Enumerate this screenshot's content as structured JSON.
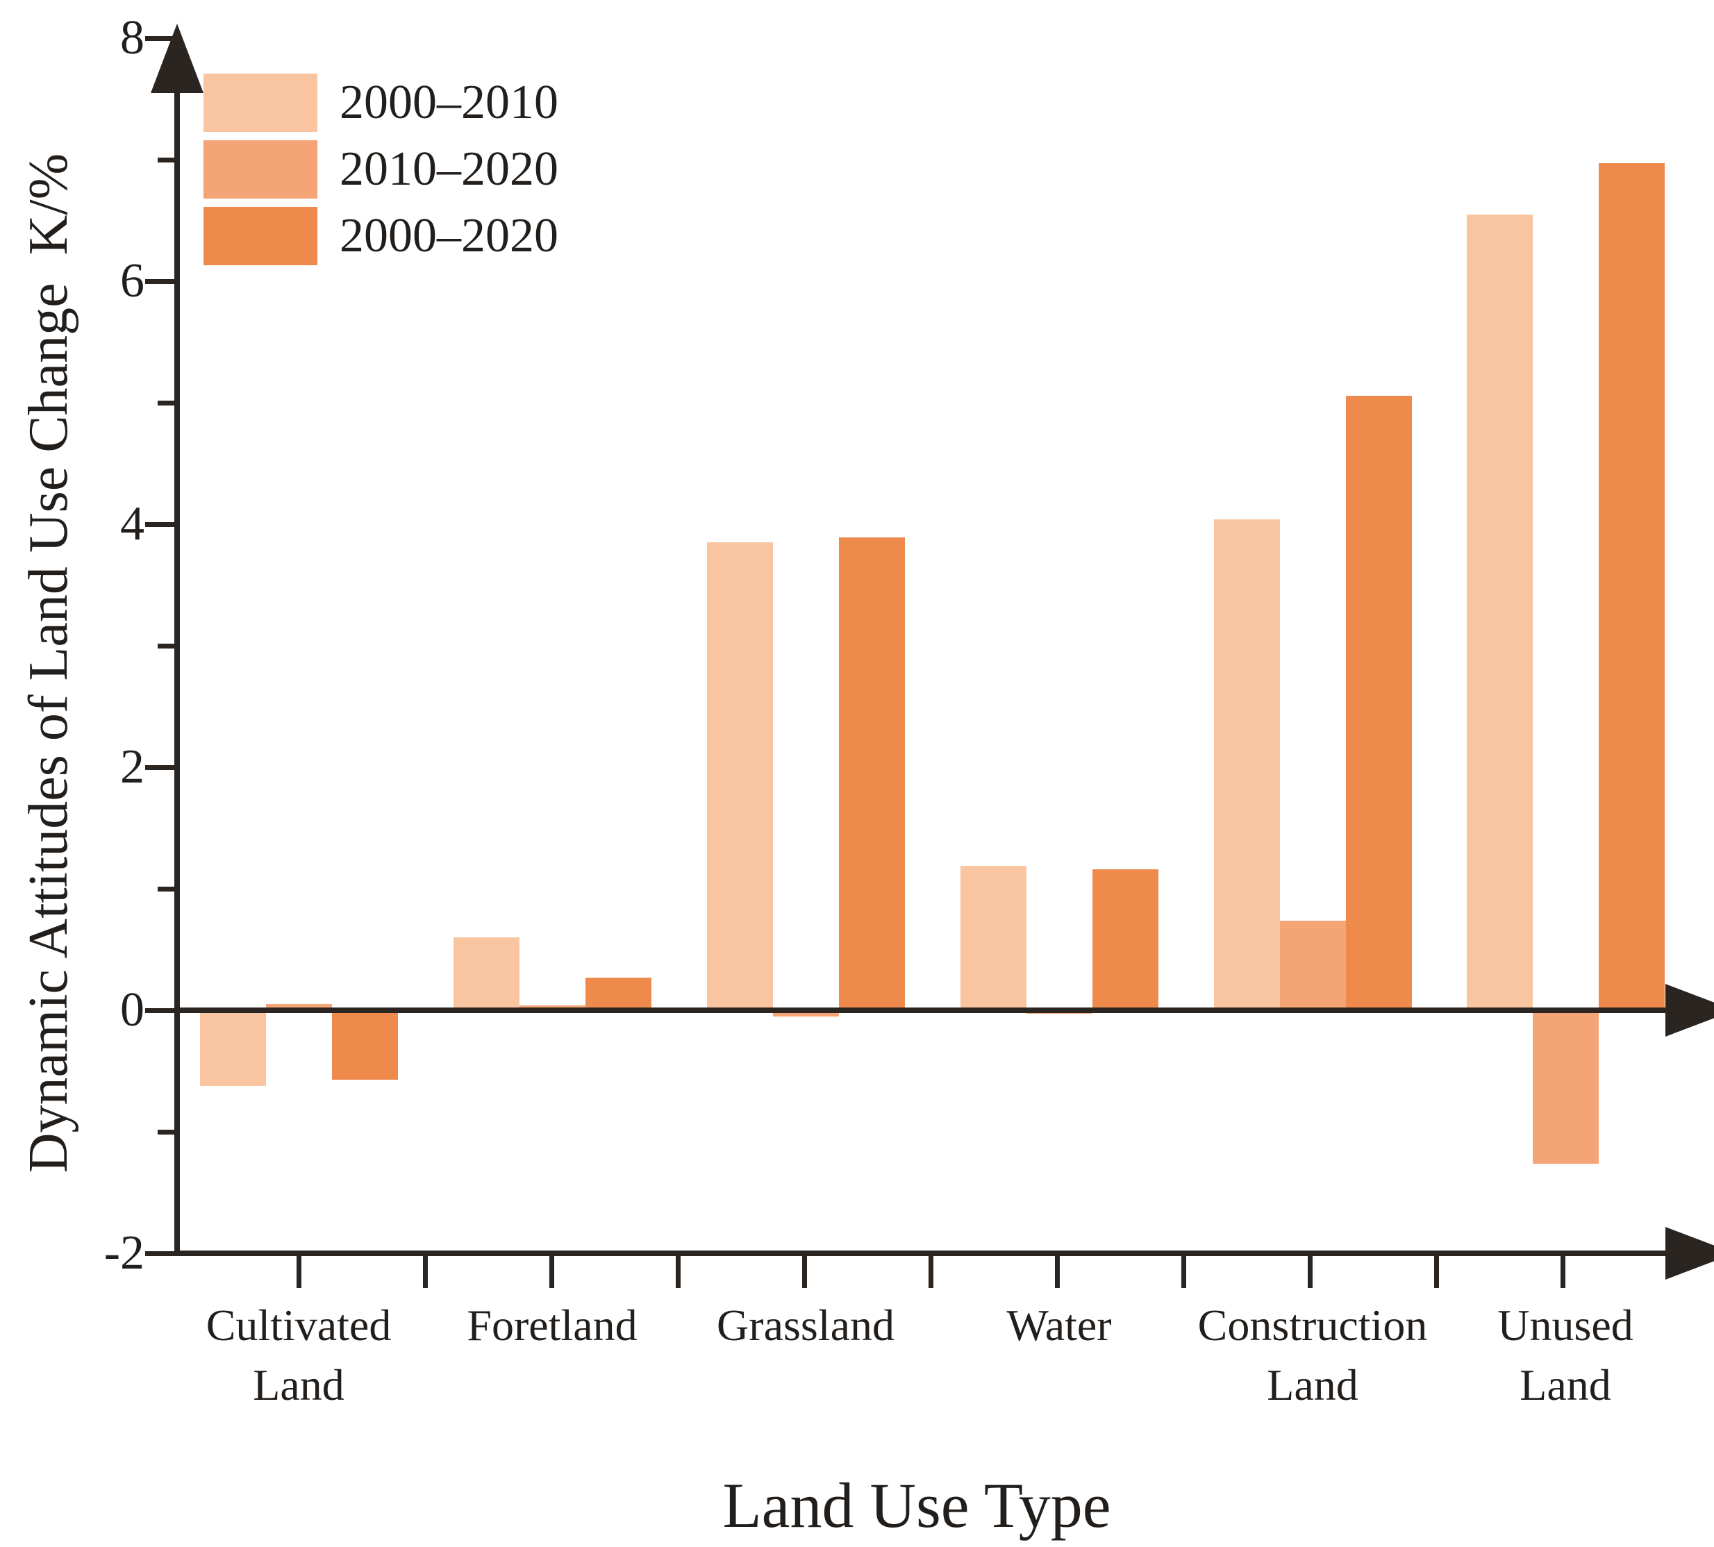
{
  "chart_data": {
    "type": "bar",
    "title": "",
    "xlabel": "Land Use Type",
    "ylabel": "Dynamic Attitudes of Land Use Change  K/%",
    "categories": [
      "Cultivated Land",
      "Foretland",
      "Grassland",
      "Water",
      "Construction Land",
      "Unused Land"
    ],
    "category_label_lines": [
      [
        "Cultivated",
        "Land"
      ],
      [
        "Foretland"
      ],
      [
        "Grassland"
      ],
      [
        "Water"
      ],
      [
        "Construction",
        "Land"
      ],
      [
        "Unused",
        "Land"
      ]
    ],
    "series": [
      {
        "name": "2000–2010",
        "color": "#F8C5A0",
        "values": [
          -0.62,
          0.6,
          3.85,
          1.19,
          4.04,
          6.55
        ]
      },
      {
        "name": "2010–2020",
        "color": "#F4A475",
        "values": [
          0.05,
          0.04,
          -0.05,
          -0.03,
          0.74,
          -1.26
        ]
      },
      {
        "name": "2000–2020",
        "color": "#EE8A4C",
        "values": [
          -0.57,
          0.27,
          3.89,
          1.16,
          5.06,
          6.97
        ]
      }
    ],
    "ylim": [
      -2,
      8
    ],
    "y_major_ticks": [
      8,
      6,
      4,
      2,
      0,
      -2
    ],
    "y_minor_ticks": [
      7,
      5,
      3,
      1,
      -1
    ],
    "baseline_value": 0,
    "grid": false,
    "legend_position": "top-left",
    "axis_color": "#2b2521"
  }
}
